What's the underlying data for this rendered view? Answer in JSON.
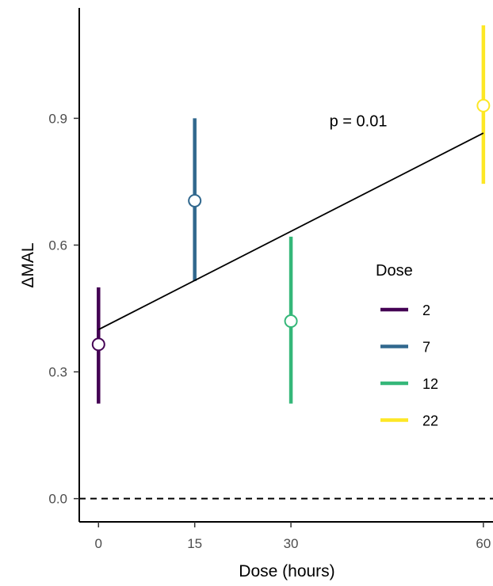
{
  "chart_data": {
    "type": "scatter",
    "xlabel": "Dose (hours)",
    "ylabel": "ΔMAL",
    "xlim": [
      -3,
      61.5
    ],
    "ylim": [
      -0.055,
      1.18
    ],
    "x_ticks": [
      0,
      15,
      30,
      60
    ],
    "x_tick_labels": [
      "0",
      "15",
      "30",
      "60"
    ],
    "y_ticks": [
      0.0,
      0.3,
      0.6,
      0.9
    ],
    "y_tick_labels": [
      "0.0",
      "0.3",
      "0.6",
      "0.9"
    ],
    "grid": false,
    "reference_line": {
      "y": 0.0,
      "style": "dashed"
    },
    "trend_line": {
      "x": [
        0,
        60
      ],
      "y": [
        0.4,
        0.865
      ]
    },
    "annotation": {
      "text": "p = 0.01",
      "x": 40.5,
      "y": 0.9
    },
    "legend": {
      "title": "Dose",
      "placement": "right",
      "entries": [
        {
          "label": "2",
          "color": "#440154"
        },
        {
          "label": "7",
          "color": "#31688e"
        },
        {
          "label": "12",
          "color": "#35b779"
        },
        {
          "label": "22",
          "color": "#fde725"
        }
      ]
    },
    "series": [
      {
        "name": "2",
        "x": 0,
        "y": 0.365,
        "low": 0.225,
        "high": 0.5,
        "color": "#440154"
      },
      {
        "name": "7",
        "x": 15,
        "y": 0.705,
        "low": 0.515,
        "high": 0.9,
        "color": "#31688e"
      },
      {
        "name": "12",
        "x": 30,
        "y": 0.42,
        "low": 0.225,
        "high": 0.62,
        "color": "#35b779"
      },
      {
        "name": "22",
        "x": 60,
        "y": 0.93,
        "low": 0.745,
        "high": 1.12,
        "color": "#fde725"
      }
    ]
  }
}
